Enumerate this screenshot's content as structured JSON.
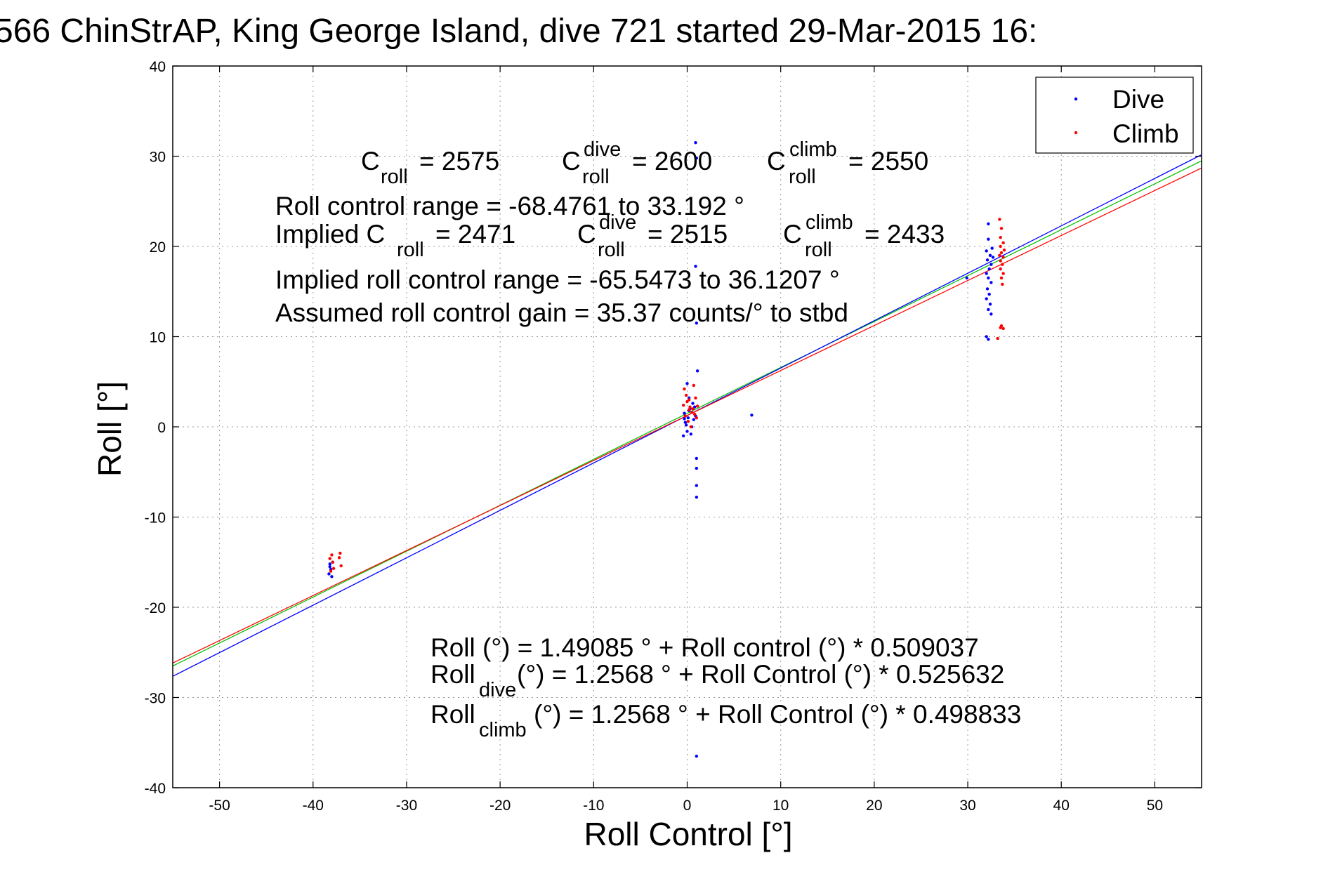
{
  "chart_data": {
    "type": "scatter",
    "title": "566 ChinStrAP, King George Island, dive 721 started 29-Mar-2015 16:",
    "xlabel": "Roll Control [°]",
    "ylabel": "Roll [°]",
    "xlim": [
      -55,
      55
    ],
    "ylim": [
      -40,
      40
    ],
    "x_ticks": [
      -50,
      -40,
      -30,
      -20,
      -10,
      0,
      10,
      20,
      30,
      40,
      50
    ],
    "y_ticks": [
      -40,
      -30,
      -20,
      -10,
      0,
      10,
      20,
      30,
      40
    ],
    "grid": true,
    "legend_position": "top-right",
    "legend": [
      {
        "name": "Dive",
        "color": "#0000ff"
      },
      {
        "name": "Climb",
        "color": "#ff0000"
      }
    ],
    "series": [
      {
        "name": "Dive",
        "color": "#0000ff",
        "points": [
          [
            -38.2,
            -15.2
          ],
          [
            -38.1,
            -15.8
          ],
          [
            -38.3,
            -16.3
          ],
          [
            -38.0,
            -16.6
          ],
          [
            -38.2,
            -15.5
          ],
          [
            -37.9,
            -15.0
          ],
          [
            -0.3,
            1.5
          ],
          [
            -0.2,
            0.5
          ],
          [
            0.0,
            -0.5
          ],
          [
            0.1,
            1.0
          ],
          [
            0.3,
            2.0
          ],
          [
            0.5,
            0.0
          ],
          [
            -0.4,
            -1.0
          ],
          [
            0.2,
            1.8
          ],
          [
            0.6,
            2.6
          ],
          [
            0.9,
            1.2
          ],
          [
            -0.1,
            0.2
          ],
          [
            0.4,
            -0.8
          ],
          [
            0.7,
            0.8
          ],
          [
            0.2,
            3.2
          ],
          [
            0.0,
            4.8
          ],
          [
            0.8,
            2.2
          ],
          [
            -0.3,
            0.9
          ],
          [
            0.9,
            31.5
          ],
          [
            1.0,
            29.8
          ],
          [
            0.9,
            17.8
          ],
          [
            1.0,
            11.5
          ],
          [
            1.1,
            6.2
          ],
          [
            1.0,
            -3.5
          ],
          [
            1.0,
            -4.6
          ],
          [
            1.0,
            -6.5
          ],
          [
            1.0,
            -7.8
          ],
          [
            1.0,
            -36.5
          ],
          [
            6.9,
            1.3
          ],
          [
            29.9,
            16.5
          ],
          [
            32.2,
            22.5
          ],
          [
            32.2,
            20.8
          ],
          [
            32.0,
            19.5
          ],
          [
            32.4,
            19.0
          ],
          [
            32.1,
            18.5
          ],
          [
            32.5,
            18.0
          ],
          [
            32.3,
            17.5
          ],
          [
            32.0,
            17.0
          ],
          [
            32.2,
            16.5
          ],
          [
            32.5,
            16.0
          ],
          [
            32.1,
            15.3
          ],
          [
            32.3,
            14.7
          ],
          [
            32.0,
            14.2
          ],
          [
            32.4,
            13.6
          ],
          [
            32.2,
            13.0
          ],
          [
            32.5,
            12.5
          ],
          [
            32.0,
            10.0
          ],
          [
            32.2,
            9.7
          ],
          [
            32.6,
            19.8
          ],
          [
            32.7,
            18.8
          ]
        ]
      },
      {
        "name": "Climb",
        "color": "#ff0000",
        "points": [
          [
            -38.0,
            -14.2
          ],
          [
            -37.9,
            -15.0
          ],
          [
            -38.2,
            -14.6
          ],
          [
            -37.8,
            -15.7
          ],
          [
            -38.1,
            -16.0
          ],
          [
            -37.2,
            -14.5
          ],
          [
            -37.0,
            -15.4
          ],
          [
            -37.1,
            -14.0
          ],
          [
            -0.3,
            4.2
          ],
          [
            -0.1,
            3.5
          ],
          [
            0.0,
            2.8
          ],
          [
            0.2,
            3.0
          ],
          [
            0.3,
            2.2
          ],
          [
            0.5,
            1.6
          ],
          [
            0.6,
            2.0
          ],
          [
            0.8,
            1.4
          ],
          [
            1.0,
            1.0
          ],
          [
            -0.2,
            1.2
          ],
          [
            0.1,
            0.6
          ],
          [
            0.4,
            0.0
          ],
          [
            0.9,
            3.2
          ],
          [
            0.7,
            4.6
          ],
          [
            -0.4,
            2.4
          ],
          [
            0.2,
            1.9
          ],
          [
            1.1,
            2.3
          ],
          [
            33.4,
            23.0
          ],
          [
            33.6,
            22.0
          ],
          [
            33.5,
            21.0
          ],
          [
            33.8,
            20.4
          ],
          [
            33.5,
            20.0
          ],
          [
            33.9,
            19.6
          ],
          [
            33.6,
            19.3
          ],
          [
            33.4,
            19.0
          ],
          [
            33.8,
            18.8
          ],
          [
            33.5,
            18.4
          ],
          [
            33.7,
            18.0
          ],
          [
            33.5,
            17.5
          ],
          [
            33.8,
            17.0
          ],
          [
            33.6,
            16.5
          ],
          [
            33.7,
            15.8
          ],
          [
            33.6,
            11.2
          ],
          [
            33.8,
            10.9
          ],
          [
            33.5,
            11.0
          ],
          [
            33.2,
            9.8
          ]
        ]
      }
    ],
    "fit_lines": [
      {
        "name": "all",
        "color": "#00c000",
        "intercept": 1.49085,
        "slope": 0.509037
      },
      {
        "name": "dive",
        "color": "#0000ff",
        "intercept": 1.2568,
        "slope": 0.525632
      },
      {
        "name": "climb",
        "color": "#ff0000",
        "intercept": 1.2568,
        "slope": 0.498833
      }
    ],
    "annotations": {
      "c_roll_value": "= 2575",
      "c_dive_value": "= 2600",
      "c_climb_value": "= 2550",
      "roll_range": "Roll control range = -68.4761 to 33.192 °",
      "implied_label": "Implied C",
      "implied_c_value": "= 2471",
      "implied_c_dive_value": "= 2515",
      "implied_c_climb_value": "= 2433",
      "implied_range": "Implied roll control range = -65.5473 to 36.1207 °",
      "assumed_gain": "Assumed roll control gain = 35.37 counts/° to stbd",
      "fit_all": "Roll (°) = 1.49085 ° + Roll control (°) * 0.509037",
      "fit_dive_tail": " (°) = 1.2568 ° + Roll Control (°) * 0.525632",
      "fit_climb_tail": " (°) = 1.2568 ° + Roll Control (°) * 0.498833",
      "sym_c": "C",
      "sym_roll": "Roll",
      "sub_roll": "roll",
      "sup_dive": "dive",
      "sup_climb": "climb",
      "sub_dive": "dive",
      "sub_climb": "climb"
    }
  }
}
